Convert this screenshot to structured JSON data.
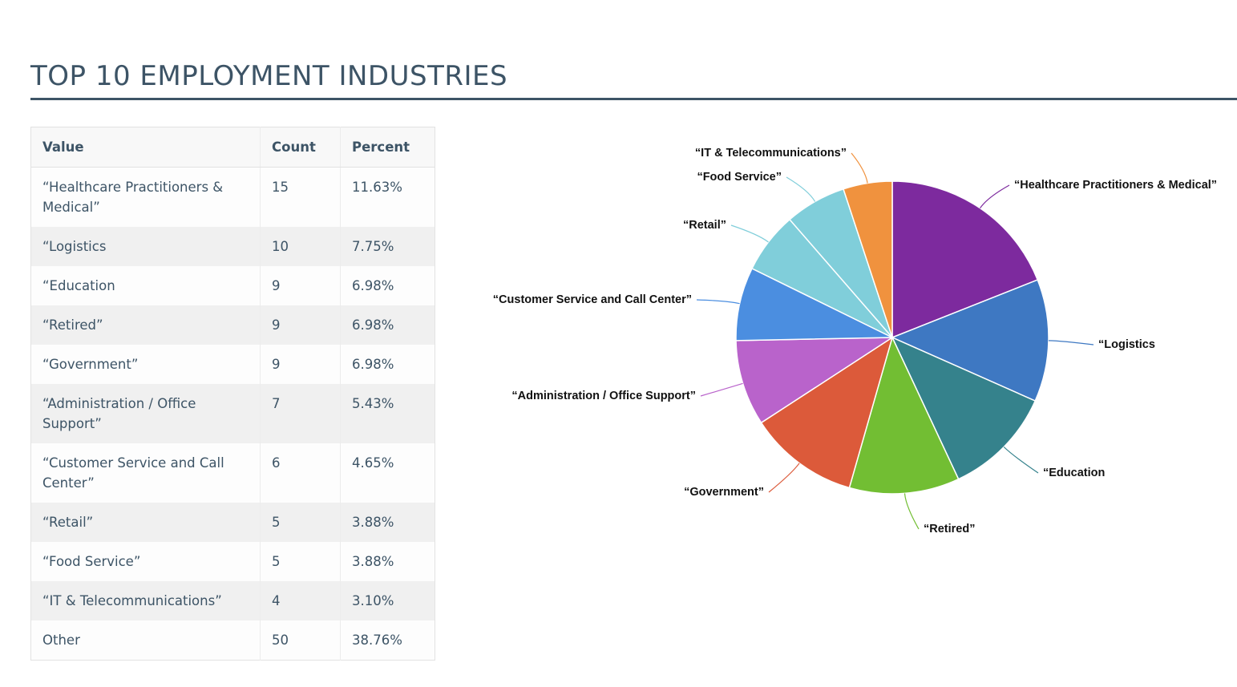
{
  "title": "TOP 10 EMPLOYMENT INDUSTRIES",
  "table": {
    "headers": {
      "value": "Value",
      "count": "Count",
      "percent": "Percent"
    },
    "rows": [
      {
        "value": "“Healthcare Practitioners & Medical”",
        "count": "15",
        "percent": "11.63%"
      },
      {
        "value": "“Logistics",
        "count": "10",
        "percent": "7.75%"
      },
      {
        "value": "“Education",
        "count": "9",
        "percent": "6.98%"
      },
      {
        "value": "“Retired”",
        "count": "9",
        "percent": "6.98%"
      },
      {
        "value": "“Government”",
        "count": "9",
        "percent": "6.98%"
      },
      {
        "value": "“Administration / Office Support”",
        "count": "7",
        "percent": "5.43%"
      },
      {
        "value": "“Customer Service and Call Center”",
        "count": "6",
        "percent": "4.65%"
      },
      {
        "value": "“Retail”",
        "count": "5",
        "percent": "3.88%"
      },
      {
        "value": "“Food Service”",
        "count": "5",
        "percent": "3.88%"
      },
      {
        "value": "“IT & Telecommunications”",
        "count": "4",
        "percent": "3.10%"
      },
      {
        "value": "Other",
        "count": "50",
        "percent": "38.76%"
      }
    ]
  },
  "chart_data": {
    "type": "pie",
    "title": "",
    "start_angle": "12 o'clock",
    "direction": "clockwise",
    "slices": [
      {
        "label": "“Healthcare Practitioners & Medical”",
        "value": 15,
        "color": "#7d2a9e"
      },
      {
        "label": "“Logistics",
        "value": 10,
        "color": "#3e78c2"
      },
      {
        "label": "“Education",
        "value": 9,
        "color": "#35828c"
      },
      {
        "label": "“Retired”",
        "value": 9,
        "color": "#72be33"
      },
      {
        "label": "“Government”",
        "value": 9,
        "color": "#dc5a3a"
      },
      {
        "label": "“Administration / Office Support”",
        "value": 7,
        "color": "#b963cb"
      },
      {
        "label": "“Customer Service and Call Center”",
        "value": 6,
        "color": "#4b8ee0"
      },
      {
        "label": "“Retail”",
        "value": 5,
        "color": "#80ceda"
      },
      {
        "label": "“Food Service”",
        "value": 5,
        "color": "#80ceda"
      },
      {
        "label": "“IT & Telecommunications”",
        "value": 4,
        "color": "#f0923e"
      }
    ]
  }
}
